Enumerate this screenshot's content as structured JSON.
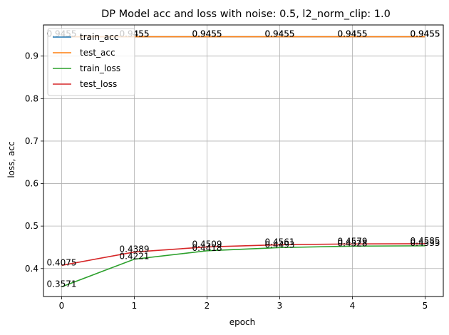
{
  "chart_data": {
    "type": "line",
    "title": "DP Model acc and loss with noise: 0.5, l2_norm_clip: 1.0",
    "xlabel": "epoch",
    "ylabel": "loss, acc",
    "x": [
      0,
      1,
      2,
      3,
      4,
      5
    ],
    "xlim": [
      -0.25,
      5.25
    ],
    "ylim": [
      0.3342,
      0.9733
    ],
    "xticks": [
      "0",
      "1",
      "2",
      "3",
      "4",
      "5"
    ],
    "yticks": [
      "0.4",
      "0.5",
      "0.6",
      "0.7",
      "0.8",
      "0.9"
    ],
    "grid": true,
    "legend_position": "upper-left",
    "series": [
      {
        "name": "train_acc",
        "color": "#1f77b4",
        "values": [
          0.9455,
          0.9455,
          0.9455,
          0.9455,
          0.9455,
          0.9455
        ],
        "labels": [
          "0.9455",
          "0.9455",
          "0.9455",
          "0.9455",
          "0.9455",
          "0.9455"
        ]
      },
      {
        "name": "test_acc",
        "color": "#ff7f0e",
        "values": [
          0.9455,
          0.9455,
          0.9455,
          0.9455,
          0.9455,
          0.9455
        ],
        "labels": [
          "0.9455",
          "0.9455",
          "0.9455",
          "0.9455",
          "0.9455",
          "0.9455"
        ]
      },
      {
        "name": "train_loss",
        "color": "#2ca02c",
        "values": [
          0.3571,
          0.4221,
          0.4418,
          0.4493,
          0.4528,
          0.4535
        ],
        "labels": [
          "0.3571",
          "0.4221",
          "0.4418",
          "0.4493",
          "0.4528",
          "0.4535"
        ]
      },
      {
        "name": "test_loss",
        "color": "#d62728",
        "values": [
          0.4075,
          0.4389,
          0.4509,
          0.4561,
          0.4579,
          0.4585
        ],
        "labels": [
          "0.4075",
          "0.4389",
          "0.4509",
          "0.4561",
          "0.4579",
          "0.4585"
        ]
      }
    ]
  }
}
